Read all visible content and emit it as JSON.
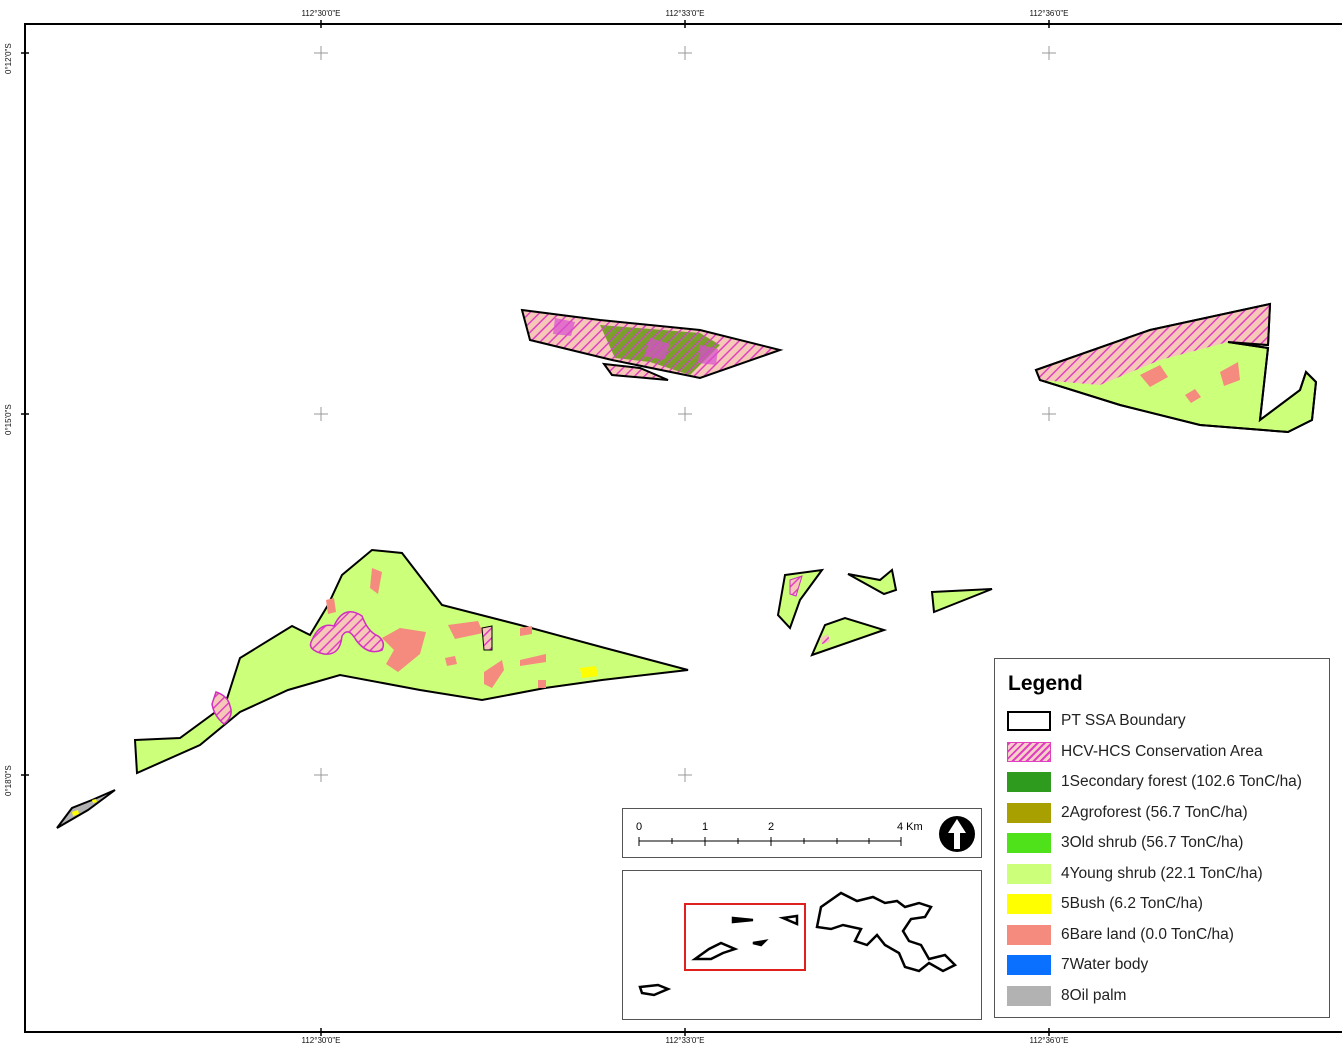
{
  "graticule": {
    "top_labels": [
      "112°30'0\"E",
      "112°33'0\"E",
      "112°36'0\"E"
    ],
    "bottom_labels": [
      "112°30'0\"E",
      "112°33'0\"E",
      "112°36'0\"E"
    ],
    "left_labels": [
      "0°12'0\"S",
      "0°15'0\"S",
      "0°18'0\"S"
    ]
  },
  "legend": {
    "title": "Legend",
    "items": [
      {
        "label": "PT SSA Boundary",
        "swatch": "boundary",
        "color": "#ffffff"
      },
      {
        "label": "HCV-HCS Conservation Area",
        "swatch": "hatch",
        "color": "#e040c0"
      },
      {
        "label": "1Secondary forest (102.6 TonC/ha)",
        "swatch": "fill",
        "color": "#2e9a1e"
      },
      {
        "label": "2Agroforest (56.7 TonC/ha)",
        "swatch": "fill",
        "color": "#a8a000"
      },
      {
        "label": "3Old shrub (56.7 TonC/ha)",
        "swatch": "fill",
        "color": "#4fe21a"
      },
      {
        "label": "4Young shrub (22.1 TonC/ha)",
        "swatch": "fill",
        "color": "#ccff7a"
      },
      {
        "label": "5Bush (6.2 TonC/ha)",
        "swatch": "fill",
        "color": "#ffff00"
      },
      {
        "label": "6Bare land (0.0 TonC/ha)",
        "swatch": "fill",
        "color": "#f58a7e"
      },
      {
        "label": "7Water body",
        "swatch": "fill",
        "color": "#0a70ff"
      },
      {
        "label": "8Oil palm",
        "swatch": "fill",
        "color": "#b2b2b2"
      }
    ]
  },
  "scale_bar": {
    "labels": [
      "0",
      "1",
      "2",
      "4 Km"
    ],
    "north_arrow": "north-arrow-icon"
  },
  "colors": {
    "young_shrub": "#ccff7a",
    "bare_land": "#f58a7e",
    "hatch_pink": "#e040c0",
    "inset_frame": "#e0201c",
    "boundary": "#000000"
  }
}
